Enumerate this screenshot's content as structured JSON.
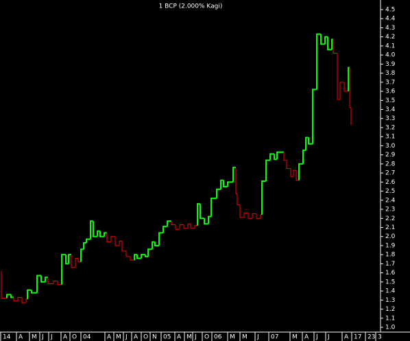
{
  "chart_data": {
    "type": "kagi",
    "title": "1 BCP (2.000% Kagi)",
    "x": [
      2,
      2,
      10,
      16,
      20,
      26,
      32,
      38,
      40,
      46,
      54,
      60,
      66,
      70,
      78,
      84,
      90,
      96,
      100,
      104,
      110,
      114,
      118,
      122,
      126,
      132,
      136,
      142,
      146,
      152,
      156,
      162,
      168,
      174,
      178,
      184,
      190,
      196,
      200,
      206,
      212,
      216,
      222,
      226,
      232,
      238,
      244,
      250,
      256,
      262,
      268,
      274,
      278,
      284,
      288,
      292,
      298,
      304,
      308,
      316,
      322,
      326,
      332,
      340,
      344,
      346,
      350,
      356,
      362,
      368,
      374,
      380,
      382,
      388,
      394,
      400,
      404,
      414,
      418,
      424,
      428,
      432,
      436,
      442,
      446,
      450,
      456,
      462,
      468,
      474,
      478,
      484,
      486,
      492,
      496,
      502,
      508,
      510,
      512
    ],
    "values": [
      1.62,
      1.32,
      1.36,
      1.33,
      1.29,
      1.33,
      1.27,
      1.31,
      1.41,
      1.38,
      1.57,
      1.5,
      1.55,
      1.48,
      1.51,
      1.47,
      1.8,
      1.7,
      1.8,
      1.66,
      1.76,
      1.72,
      1.86,
      1.93,
      1.97,
      2.17,
      2.0,
      2.06,
      2.0,
      2.04,
      1.94,
      2.0,
      1.9,
      1.95,
      1.84,
      1.78,
      1.74,
      1.8,
      1.76,
      1.8,
      1.78,
      1.86,
      1.94,
      1.9,
      2.04,
      2.11,
      2.17,
      2.13,
      2.08,
      2.13,
      2.09,
      2.14,
      2.09,
      2.12,
      2.36,
      2.2,
      2.14,
      2.22,
      2.42,
      2.52,
      2.62,
      2.55,
      2.6,
      2.76,
      2.47,
      2.35,
      2.21,
      2.26,
      2.2,
      2.25,
      2.2,
      2.24,
      2.61,
      2.84,
      2.91,
      2.85,
      2.93,
      2.84,
      2.75,
      2.66,
      2.73,
      2.62,
      2.8,
      2.95,
      3.09,
      3.02,
      3.62,
      4.23,
      4.12,
      4.2,
      4.06,
      4.17,
      4.02,
      3.51,
      3.7,
      3.6,
      3.86,
      3.42,
      3.23
    ],
    "state": [
      "yin",
      "yin",
      "yang",
      "yang",
      "yin",
      "yin",
      "yin",
      "yin",
      "yang",
      "yang",
      "yang",
      "yang",
      "yang",
      "yin",
      "yin",
      "yin",
      "yang",
      "yang",
      "yang",
      "yin",
      "yin",
      "yin",
      "yang",
      "yang",
      "yang",
      "yang",
      "yang",
      "yang",
      "yang",
      "yang",
      "yin",
      "yin",
      "yin",
      "yin",
      "yin",
      "yin",
      "yin",
      "yang",
      "yang",
      "yang",
      "yang",
      "yang",
      "yang",
      "yang",
      "yang",
      "yang",
      "yang",
      "yin",
      "yin",
      "yin",
      "yin",
      "yin",
      "yin",
      "yin",
      "yang",
      "yang",
      "yang",
      "yang",
      "yang",
      "yang",
      "yang",
      "yang",
      "yang",
      "yang",
      "yin",
      "yin",
      "yin",
      "yin",
      "yin",
      "yin",
      "yin",
      "yin",
      "yang",
      "yang",
      "yang",
      "yang",
      "yang",
      "yin",
      "yin",
      "yin",
      "yin",
      "yin",
      "yang",
      "yang",
      "yang",
      "yang",
      "yang",
      "yang",
      "yang",
      "yang",
      "yang",
      "yang",
      "yin",
      "yin",
      "yin",
      "yin",
      "yang",
      "yin",
      "yin"
    ],
    "colors": {
      "yang": "#00ff00",
      "yin": "#ff0000"
    },
    "xlim": [
      0,
      555
    ],
    "xticks": [
      {
        "value": 1,
        "label": "14"
      },
      {
        "value": 24,
        "label": "A"
      },
      {
        "value": 43,
        "label": "M"
      },
      {
        "value": 58,
        "label": "J"
      },
      {
        "value": 71,
        "label": "J"
      },
      {
        "value": 89,
        "label": "A"
      },
      {
        "value": 102,
        "label": "O"
      },
      {
        "value": 118,
        "label": "04"
      },
      {
        "value": 153,
        "label": "A"
      },
      {
        "value": 166,
        "label": "M"
      },
      {
        "value": 180,
        "label": "J"
      },
      {
        "value": 192,
        "label": "A"
      },
      {
        "value": 206,
        "label": "O"
      },
      {
        "value": 219,
        "label": "N"
      },
      {
        "value": 235,
        "label": "05"
      },
      {
        "value": 255,
        "label": "A"
      },
      {
        "value": 269,
        "label": "M"
      },
      {
        "value": 281,
        "label": "J"
      },
      {
        "value": 295,
        "label": "O"
      },
      {
        "value": 309,
        "label": "06"
      },
      {
        "value": 332,
        "label": "M"
      },
      {
        "value": 350,
        "label": "M"
      },
      {
        "value": 372,
        "label": "J"
      },
      {
        "value": 392,
        "label": "07"
      },
      {
        "value": 423,
        "label": "M"
      },
      {
        "value": 441,
        "label": "A"
      },
      {
        "value": 458,
        "label": "J"
      },
      {
        "value": 475,
        "label": "J"
      },
      {
        "value": 499,
        "label": "A"
      },
      {
        "value": 513,
        "label": "17"
      },
      {
        "value": 533,
        "label": "23"
      },
      {
        "value": 548,
        "label": "3"
      }
    ],
    "ylim": [
      1.0,
      4.5
    ],
    "yticks": [
      {
        "value": 1,
        "label": "1.0"
      },
      1.1,
      1.2,
      1.3,
      1.4,
      1.5,
      1.6,
      1.7,
      1.8,
      1.9,
      {
        "value": 2,
        "label": "2.0"
      },
      2.1,
      2.2,
      2.3,
      2.4,
      2.5,
      2.6,
      2.7,
      2.8,
      2.9,
      {
        "value": 3,
        "label": "3.0"
      },
      3.1,
      3.2,
      3.3,
      3.4,
      3.5,
      3.6,
      3.7,
      3.8,
      3.9,
      {
        "value": 4,
        "label": "4.0"
      },
      4.1,
      4.2,
      4.3,
      4.4,
      4.5
    ]
  }
}
